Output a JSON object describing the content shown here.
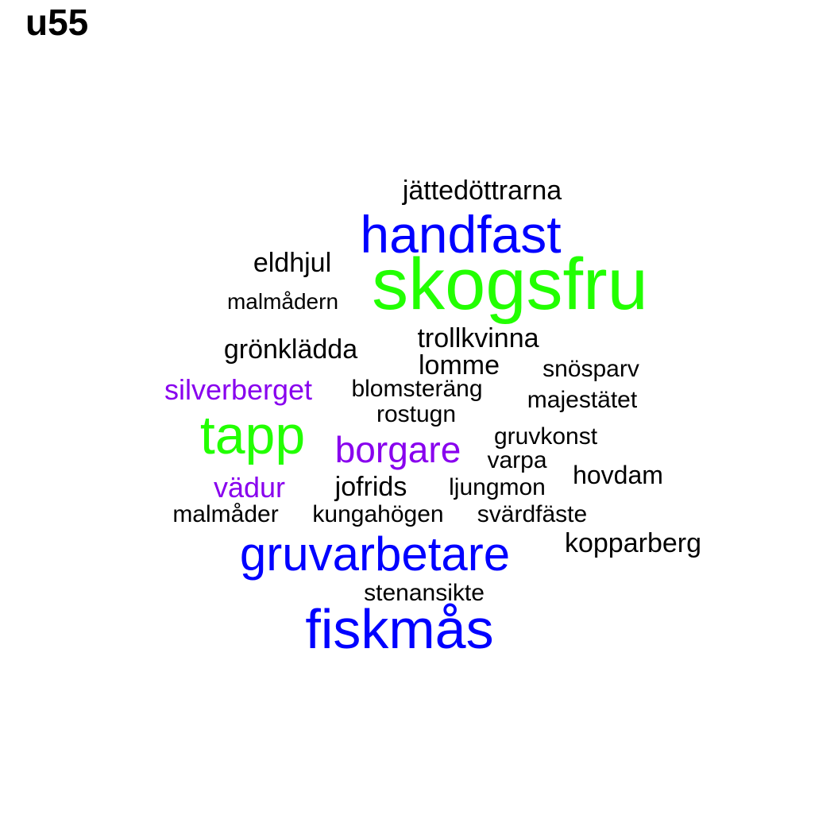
{
  "title": "u55",
  "colors": {
    "black": "#000000",
    "blue": "#0000ff",
    "green": "#22ff00",
    "purple": "#8800ee"
  },
  "words": [
    {
      "text": "skogsfru",
      "color": "green"
    },
    {
      "text": "handfast",
      "color": "blue"
    },
    {
      "text": "tapp",
      "color": "green"
    },
    {
      "text": "fiskmås",
      "color": "blue"
    },
    {
      "text": "gruvarbetare",
      "color": "blue"
    },
    {
      "text": "borgare",
      "color": "purple"
    },
    {
      "text": "silverberget",
      "color": "purple"
    },
    {
      "text": "vädur",
      "color": "purple"
    },
    {
      "text": "jättedöttrarna",
      "color": "black"
    },
    {
      "text": "eldhjul",
      "color": "black"
    },
    {
      "text": "malmådern",
      "color": "black"
    },
    {
      "text": "grönklädda",
      "color": "black"
    },
    {
      "text": "trollkvinna",
      "color": "black"
    },
    {
      "text": "lomme",
      "color": "black"
    },
    {
      "text": "snösparv",
      "color": "black"
    },
    {
      "text": "blomsteräng",
      "color": "black"
    },
    {
      "text": "majestätet",
      "color": "black"
    },
    {
      "text": "rostugn",
      "color": "black"
    },
    {
      "text": "gruvkonst",
      "color": "black"
    },
    {
      "text": "varpa",
      "color": "black"
    },
    {
      "text": "hovdam",
      "color": "black"
    },
    {
      "text": "jofrids",
      "color": "black"
    },
    {
      "text": "ljungmon",
      "color": "black"
    },
    {
      "text": "malmåder",
      "color": "black"
    },
    {
      "text": "kungahögen",
      "color": "black"
    },
    {
      "text": "svärdfäste",
      "color": "black"
    },
    {
      "text": "kopparberg",
      "color": "black"
    },
    {
      "text": "stenansikte",
      "color": "black"
    }
  ]
}
